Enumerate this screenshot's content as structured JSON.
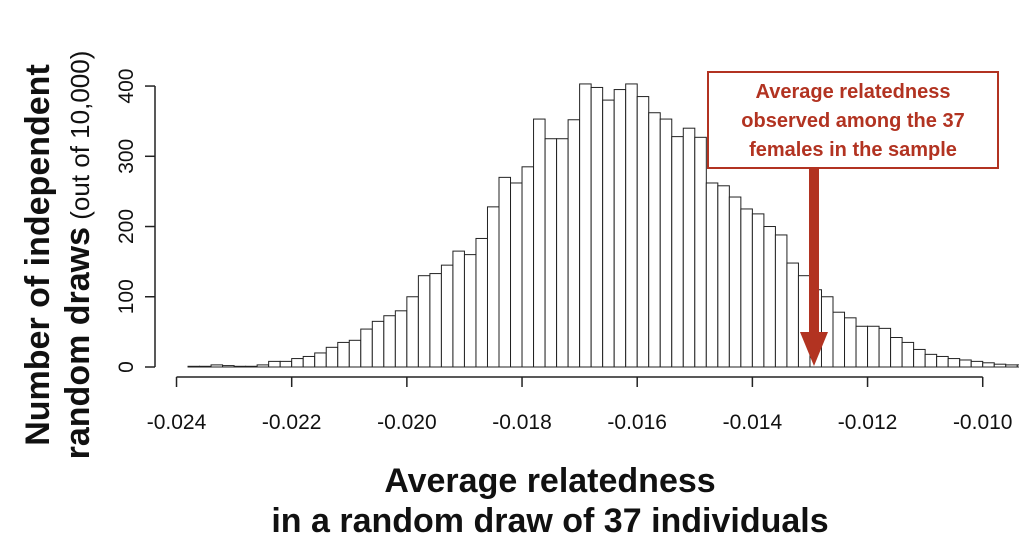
{
  "chart_data": {
    "type": "bar",
    "title": "",
    "xlabel_lines": [
      "Average relatedness",
      "in a random draw of 37 individuals"
    ],
    "ylabel_lines": [
      {
        "bold": "Number of independent",
        "normal": ""
      },
      {
        "bold": "random draws",
        "normal": " (out of 10,000)"
      }
    ],
    "x_ticks": [
      "-0.024",
      "-0.022",
      "-0.020",
      "-0.018",
      "-0.016",
      "-0.014",
      "-0.012",
      "-0.010"
    ],
    "x_tick_values": [
      -0.024,
      -0.022,
      -0.02,
      -0.018,
      -0.016,
      -0.014,
      -0.012,
      -0.01
    ],
    "y_ticks": [
      "0",
      "100",
      "200",
      "300",
      "400"
    ],
    "y_tick_values": [
      0,
      100,
      200,
      300,
      400
    ],
    "xlim": [
      -0.0242,
      -0.0097
    ],
    "ylim": [
      0,
      420
    ],
    "bin_width": 0.0002,
    "bin_start": -0.0238,
    "values": [
      1,
      1,
      3,
      2,
      1,
      1,
      3,
      8,
      8,
      12,
      15,
      20,
      28,
      35,
      38,
      54,
      65,
      73,
      80,
      100,
      130,
      133,
      145,
      165,
      160,
      183,
      228,
      270,
      262,
      285,
      353,
      325,
      325,
      352,
      403,
      398,
      380,
      395,
      403,
      385,
      362,
      353,
      328,
      340,
      327,
      262,
      258,
      242,
      225,
      218,
      200,
      188,
      148,
      130,
      110,
      100,
      78,
      70,
      58,
      58,
      55,
      42,
      35,
      25,
      18,
      15,
      12,
      10,
      8,
      6,
      4,
      3,
      3,
      1
    ],
    "observed_value": -0.01293,
    "annotation": {
      "lines": [
        "Average relatedness",
        "observed among the 37",
        "females in the sample"
      ],
      "color": "#b23321"
    },
    "grid": false
  }
}
